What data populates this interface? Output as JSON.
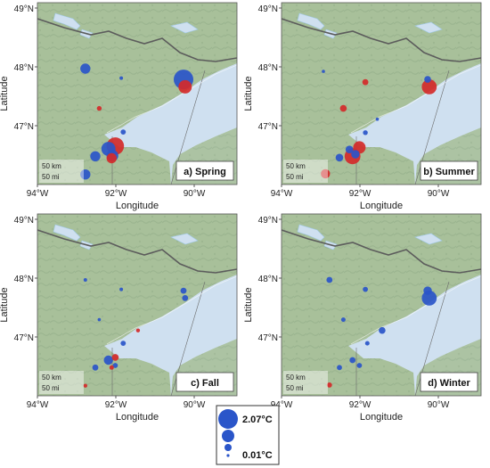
{
  "figure": {
    "xlabel": "Longitude",
    "ylabel": "Latitude",
    "scale_km": "50 km",
    "scale_mi": "50 mi",
    "legend": {
      "max_label": "2.07°C",
      "min_label": "0.01°C"
    }
  },
  "colors": {
    "land": "#a8c09a",
    "land_shade": "#93ad88",
    "water": "#cfe0f0",
    "river": "#9fc8e6",
    "border": "#5c5c5c",
    "positive": "#d42a2a",
    "negative": "#2a55c9"
  },
  "chart_data": [
    {
      "type": "scatter",
      "panel_label": "a) Spring",
      "x_ticks": [
        "94°W",
        "92°W",
        "90°W"
      ],
      "y_ticks": [
        "49°N",
        "48°N",
        "47°N"
      ],
      "xlim": [
        -94,
        -89
      ],
      "ylim": [
        46.3,
        49
      ],
      "points": [
        {
          "lon": -92.8,
          "lat": 48.02,
          "value": 0.9,
          "sign": "negative"
        },
        {
          "lon": -92.45,
          "lat": 47.43,
          "value": 0.25,
          "sign": "positive"
        },
        {
          "lon": -91.9,
          "lat": 47.88,
          "value": 0.1,
          "sign": "negative"
        },
        {
          "lon": -91.85,
          "lat": 47.08,
          "value": 0.3,
          "sign": "negative"
        },
        {
          "lon": -92.05,
          "lat": 46.87,
          "value": 1.8,
          "sign": "positive"
        },
        {
          "lon": -92.22,
          "lat": 46.83,
          "value": 1.4,
          "sign": "negative"
        },
        {
          "lon": -92.12,
          "lat": 46.73,
          "value": 1.1,
          "sign": "negative"
        },
        {
          "lon": -92.14,
          "lat": 46.69,
          "value": 0.9,
          "sign": "positive"
        },
        {
          "lon": -92.55,
          "lat": 46.72,
          "value": 0.9,
          "sign": "negative"
        },
        {
          "lon": -92.8,
          "lat": 46.45,
          "value": 0.9,
          "sign": "negative"
        },
        {
          "lon": -90.34,
          "lat": 47.86,
          "value": 2.07,
          "sign": "negative"
        },
        {
          "lon": -90.3,
          "lat": 47.75,
          "value": 1.3,
          "sign": "positive"
        }
      ]
    },
    {
      "type": "scatter",
      "panel_label": "b) Summer",
      "x_ticks": [
        "94°W",
        "92°W",
        "90°W"
      ],
      "y_ticks": [
        "49°N",
        "48°N",
        "47°N"
      ],
      "xlim": [
        -94,
        -89
      ],
      "ylim": [
        46.3,
        49
      ],
      "points": [
        {
          "lon": -92.95,
          "lat": 47.98,
          "value": 0.05,
          "sign": "negative"
        },
        {
          "lon": -92.45,
          "lat": 47.43,
          "value": 0.5,
          "sign": "positive"
        },
        {
          "lon": -91.9,
          "lat": 47.82,
          "value": 0.4,
          "sign": "positive"
        },
        {
          "lon": -91.6,
          "lat": 47.27,
          "value": 0.05,
          "sign": "negative"
        },
        {
          "lon": -91.9,
          "lat": 47.07,
          "value": 0.25,
          "sign": "negative"
        },
        {
          "lon": -92.05,
          "lat": 46.85,
          "value": 1.2,
          "sign": "positive"
        },
        {
          "lon": -92.3,
          "lat": 46.82,
          "value": 0.6,
          "sign": "negative"
        },
        {
          "lon": -92.15,
          "lat": 46.75,
          "value": 0.7,
          "sign": "negative"
        },
        {
          "lon": -92.22,
          "lat": 46.72,
          "value": 1.6,
          "sign": "positive"
        },
        {
          "lon": -92.55,
          "lat": 46.7,
          "value": 0.6,
          "sign": "negative"
        },
        {
          "lon": -92.9,
          "lat": 46.46,
          "value": 0.8,
          "sign": "positive"
        },
        {
          "lon": -90.34,
          "lat": 47.86,
          "value": 0.5,
          "sign": "negative"
        },
        {
          "lon": -90.3,
          "lat": 47.75,
          "value": 1.5,
          "sign": "positive"
        }
      ]
    },
    {
      "type": "scatter",
      "panel_label": "c) Fall",
      "x_ticks": [
        "94°W",
        "92°W",
        "90°W"
      ],
      "y_ticks": [
        "49°N",
        "48°N",
        "47°N"
      ],
      "xlim": [
        -94,
        -89
      ],
      "ylim": [
        46.3,
        49
      ],
      "points": [
        {
          "lon": -92.8,
          "lat": 48.02,
          "value": 0.1,
          "sign": "negative"
        },
        {
          "lon": -92.45,
          "lat": 47.43,
          "value": 0.05,
          "sign": "negative"
        },
        {
          "lon": -91.9,
          "lat": 47.88,
          "value": 0.1,
          "sign": "negative"
        },
        {
          "lon": -91.48,
          "lat": 47.27,
          "value": 0.15,
          "sign": "positive"
        },
        {
          "lon": -91.85,
          "lat": 47.08,
          "value": 0.3,
          "sign": "negative"
        },
        {
          "lon": -92.05,
          "lat": 46.87,
          "value": 0.5,
          "sign": "positive"
        },
        {
          "lon": -92.22,
          "lat": 46.83,
          "value": 0.8,
          "sign": "negative"
        },
        {
          "lon": -92.05,
          "lat": 46.75,
          "value": 0.3,
          "sign": "negative"
        },
        {
          "lon": -92.14,
          "lat": 46.72,
          "value": 0.2,
          "sign": "positive"
        },
        {
          "lon": -92.55,
          "lat": 46.72,
          "value": 0.4,
          "sign": "negative"
        },
        {
          "lon": -92.8,
          "lat": 46.45,
          "value": 0.15,
          "sign": "positive"
        },
        {
          "lon": -90.34,
          "lat": 47.86,
          "value": 0.4,
          "sign": "negative"
        },
        {
          "lon": -90.3,
          "lat": 47.75,
          "value": 0.4,
          "sign": "negative"
        }
      ]
    },
    {
      "type": "scatter",
      "panel_label": "d) Winter",
      "x_ticks": [
        "94°W",
        "92°W",
        "90°W"
      ],
      "y_ticks": [
        "49°N",
        "48°N",
        "47°N"
      ],
      "xlim": [
        -94,
        -89
      ],
      "ylim": [
        46.3,
        49
      ],
      "points": [
        {
          "lon": -92.8,
          "lat": 48.02,
          "value": 0.4,
          "sign": "negative"
        },
        {
          "lon": -92.45,
          "lat": 47.43,
          "value": 0.2,
          "sign": "negative"
        },
        {
          "lon": -91.9,
          "lat": 47.88,
          "value": 0.3,
          "sign": "negative"
        },
        {
          "lon": -91.48,
          "lat": 47.27,
          "value": 0.5,
          "sign": "negative"
        },
        {
          "lon": -91.85,
          "lat": 47.08,
          "value": 0.2,
          "sign": "negative"
        },
        {
          "lon": -92.22,
          "lat": 46.83,
          "value": 0.4,
          "sign": "negative"
        },
        {
          "lon": -92.05,
          "lat": 46.75,
          "value": 0.3,
          "sign": "negative"
        },
        {
          "lon": -92.55,
          "lat": 46.72,
          "value": 0.3,
          "sign": "negative"
        },
        {
          "lon": -92.8,
          "lat": 46.46,
          "value": 0.3,
          "sign": "positive"
        },
        {
          "lon": -90.34,
          "lat": 47.86,
          "value": 0.7,
          "sign": "negative"
        },
        {
          "lon": -90.3,
          "lat": 47.75,
          "value": 1.5,
          "sign": "negative"
        }
      ]
    }
  ]
}
